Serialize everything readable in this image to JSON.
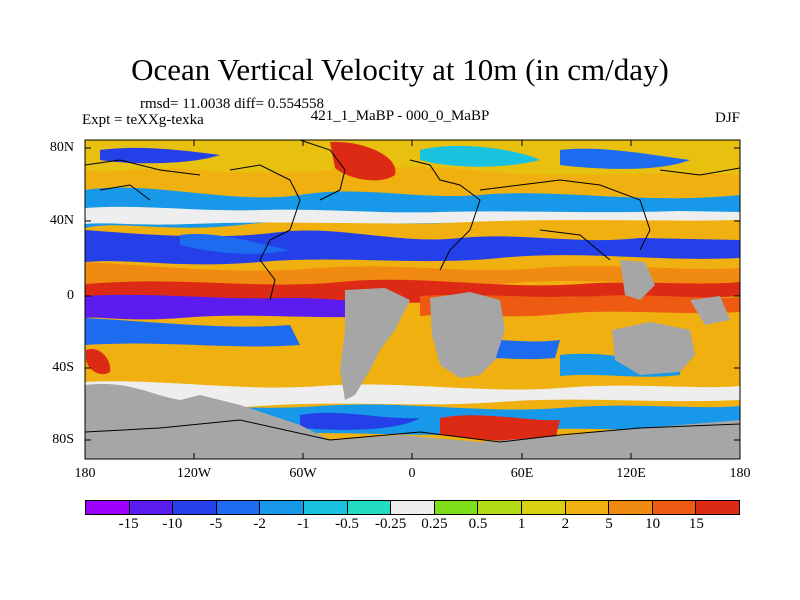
{
  "title": "Ocean Vertical Velocity at 10m (in cm/day)",
  "stats_text": "rmsd= 11.0038 diff= 0.554558",
  "expt_text": "Expt = teXXg-texka",
  "experiments_text": "421_1_MaBP - 000_0_MaBP",
  "season": "DJF",
  "land_color": "#a6a6a6",
  "y_ticks": [
    "80N",
    "40N",
    "0",
    "40S",
    "80S"
  ],
  "x_ticks": [
    "180",
    "120W",
    "60W",
    "0",
    "60E",
    "120E",
    "180"
  ],
  "colorbar": {
    "colors": [
      "#9b00ff",
      "#5a1cf0",
      "#2440e8",
      "#1d6cf0",
      "#1798e8",
      "#19c3e0",
      "#22ddc0",
      "#eeeeee",
      "#7ede1a",
      "#b4dc16",
      "#d8d010",
      "#f0b010",
      "#f08a10",
      "#ee5a12",
      "#dc2a14"
    ],
    "labels": [
      "-15",
      "-10",
      "-5",
      "-2",
      "-1",
      "-0.5",
      "-0.25",
      "0.25",
      "0.5",
      "1",
      "2",
      "5",
      "10",
      "15"
    ]
  }
}
